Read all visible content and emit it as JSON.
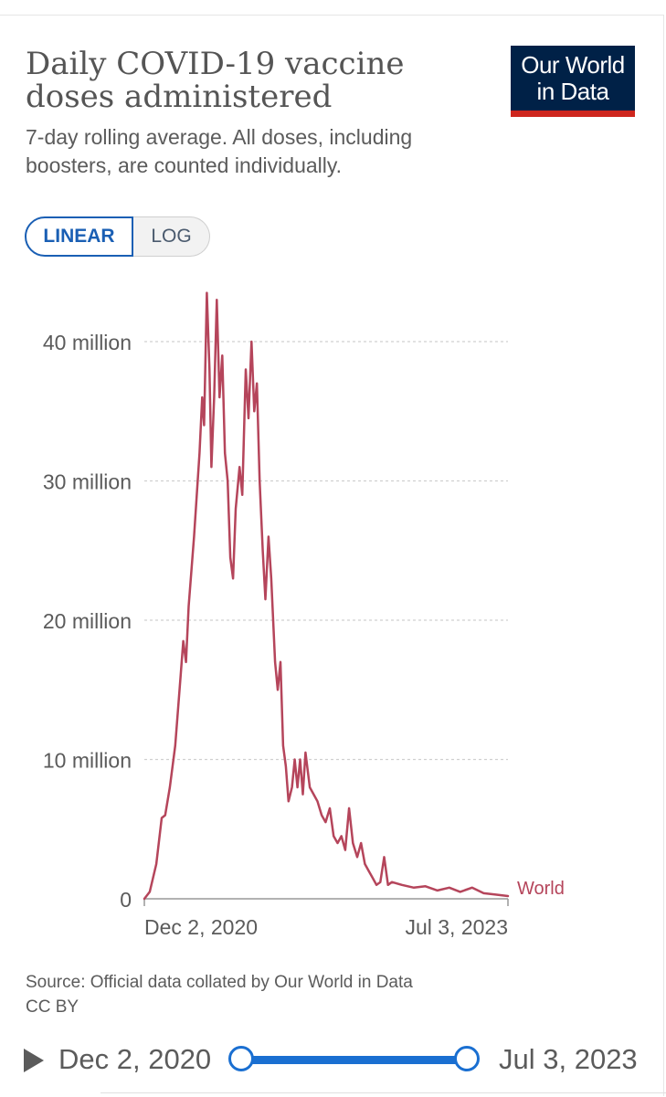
{
  "header": {
    "title": "Daily COVID-19 vaccine doses administered",
    "subtitle": "7-day rolling average. All doses, including boosters, are counted individually.",
    "logo_line1": "Our World",
    "logo_line2": "in Data"
  },
  "scale_toggle": {
    "linear_label": "LINEAR",
    "log_label": "LOG",
    "active": "LINEAR"
  },
  "footer": {
    "source": "Source: Official data collated by Our World in Data",
    "license": "CC BY"
  },
  "timeline": {
    "start_label": "Dec 2, 2020",
    "end_label": "Jul 3, 2023"
  },
  "colors": {
    "series": "#b5455b",
    "logo_bg": "#002147",
    "logo_bar": "#ce261e",
    "accent": "#1a6fd1"
  },
  "chart_data": {
    "type": "line",
    "title": "Daily COVID-19 vaccine doses administered",
    "ylabel": "",
    "xlabel": "",
    "ylim": [
      0,
      44000000
    ],
    "y_ticks": [
      {
        "value": 0,
        "label": "0"
      },
      {
        "value": 10000000,
        "label": "10 million"
      },
      {
        "value": 20000000,
        "label": "20 million"
      },
      {
        "value": 30000000,
        "label": "30 million"
      },
      {
        "value": 40000000,
        "label": "40 million"
      }
    ],
    "x_tick_labels": [
      "Dec 2, 2020",
      "Jul 3, 2023"
    ],
    "x_range": [
      "2020-12-02",
      "2023-07-03"
    ],
    "grid": "horizontal dashed",
    "series": [
      {
        "name": "World",
        "points": [
          [
            "2020-12-02",
            0
          ],
          [
            "2020-12-16",
            500000
          ],
          [
            "2021-01-02",
            2500000
          ],
          [
            "2021-01-16",
            5800000
          ],
          [
            "2021-01-25",
            6000000
          ],
          [
            "2021-02-06",
            8000000
          ],
          [
            "2021-02-20",
            11000000
          ],
          [
            "2021-03-06",
            16000000
          ],
          [
            "2021-03-13",
            18500000
          ],
          [
            "2021-03-20",
            17000000
          ],
          [
            "2021-03-27",
            21000000
          ],
          [
            "2021-04-10",
            26000000
          ],
          [
            "2021-04-24",
            32000000
          ],
          [
            "2021-05-01",
            36000000
          ],
          [
            "2021-05-06",
            34000000
          ],
          [
            "2021-05-13",
            43500000
          ],
          [
            "2021-05-20",
            38000000
          ],
          [
            "2021-05-25",
            31000000
          ],
          [
            "2021-06-01",
            36000000
          ],
          [
            "2021-06-08",
            43000000
          ],
          [
            "2021-06-15",
            36000000
          ],
          [
            "2021-06-22",
            39000000
          ],
          [
            "2021-06-29",
            32000000
          ],
          [
            "2021-07-06",
            30000000
          ],
          [
            "2021-07-13",
            24500000
          ],
          [
            "2021-07-20",
            23000000
          ],
          [
            "2021-07-27",
            28000000
          ],
          [
            "2021-08-06",
            31000000
          ],
          [
            "2021-08-13",
            29000000
          ],
          [
            "2021-08-22",
            38000000
          ],
          [
            "2021-08-29",
            34500000
          ],
          [
            "2021-09-06",
            40000000
          ],
          [
            "2021-09-13",
            35000000
          ],
          [
            "2021-09-20",
            37000000
          ],
          [
            "2021-09-27",
            30000000
          ],
          [
            "2021-10-05",
            25000000
          ],
          [
            "2021-10-12",
            21500000
          ],
          [
            "2021-10-20",
            26000000
          ],
          [
            "2021-10-27",
            23000000
          ],
          [
            "2021-11-06",
            17000000
          ],
          [
            "2021-11-13",
            15000000
          ],
          [
            "2021-11-20",
            17000000
          ],
          [
            "2021-11-27",
            11000000
          ],
          [
            "2021-12-04",
            9500000
          ],
          [
            "2021-12-11",
            7000000
          ],
          [
            "2021-12-20",
            8000000
          ],
          [
            "2021-12-27",
            10000000
          ],
          [
            "2022-01-03",
            8000000
          ],
          [
            "2022-01-10",
            10000000
          ],
          [
            "2022-01-17",
            7500000
          ],
          [
            "2022-01-24",
            10500000
          ],
          [
            "2022-02-04",
            8000000
          ],
          [
            "2022-02-14",
            7500000
          ],
          [
            "2022-02-24",
            7000000
          ],
          [
            "2022-03-07",
            6000000
          ],
          [
            "2022-03-17",
            5500000
          ],
          [
            "2022-03-28",
            6500000
          ],
          [
            "2022-04-07",
            4500000
          ],
          [
            "2022-04-17",
            4000000
          ],
          [
            "2022-04-27",
            4500000
          ],
          [
            "2022-05-07",
            3500000
          ],
          [
            "2022-05-17",
            6500000
          ],
          [
            "2022-05-27",
            4000000
          ],
          [
            "2022-06-07",
            3000000
          ],
          [
            "2022-06-17",
            4000000
          ],
          [
            "2022-06-27",
            2500000
          ],
          [
            "2022-07-07",
            2000000
          ],
          [
            "2022-07-17",
            1500000
          ],
          [
            "2022-07-27",
            1000000
          ],
          [
            "2022-08-06",
            1200000
          ],
          [
            "2022-08-16",
            3000000
          ],
          [
            "2022-08-26",
            1000000
          ],
          [
            "2022-09-05",
            1200000
          ],
          [
            "2022-10-01",
            1000000
          ],
          [
            "2022-11-01",
            800000
          ],
          [
            "2022-12-01",
            900000
          ],
          [
            "2023-01-01",
            600000
          ],
          [
            "2023-02-01",
            800000
          ],
          [
            "2023-03-01",
            500000
          ],
          [
            "2023-04-01",
            800000
          ],
          [
            "2023-05-01",
            400000
          ],
          [
            "2023-06-01",
            300000
          ],
          [
            "2023-07-03",
            200000
          ]
        ]
      }
    ]
  }
}
